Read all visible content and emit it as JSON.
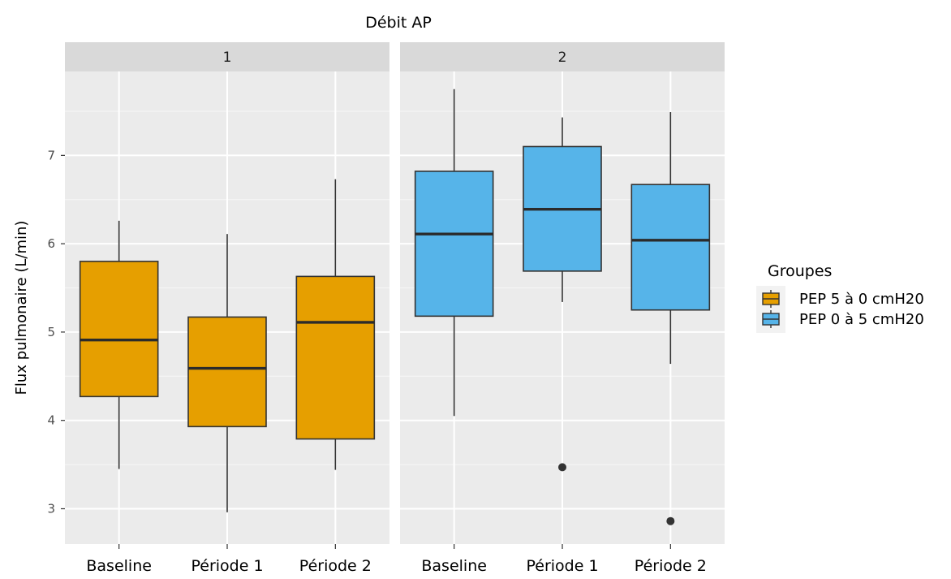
{
  "chart_data": {
    "type": "boxplot",
    "title": "Débit AP",
    "ylabel": "Flux pulmonaire (L/min)",
    "xlabel": "",
    "ylim": [
      2.6,
      7.95
    ],
    "yticks": [
      3,
      4,
      5,
      6,
      7
    ],
    "grid": true,
    "legend": {
      "title": "Groupes",
      "position": "right",
      "items": [
        {
          "label": "PEP 5 à 0 cmH20",
          "color": "#E69F00"
        },
        {
          "label": "PEP 0 à 5 cmH20",
          "color": "#56B4E9"
        }
      ]
    },
    "panels": [
      {
        "label": "1",
        "color": "#E69F00",
        "categories": [
          "Baseline",
          "Période 1",
          "Période 2"
        ],
        "boxes": [
          {
            "category": "Baseline",
            "whisker_low": 3.45,
            "q1": 4.27,
            "median": 4.91,
            "q3": 5.8,
            "whisker_high": 6.26,
            "outliers": []
          },
          {
            "category": "Période 1",
            "whisker_low": 2.96,
            "q1": 3.93,
            "median": 4.59,
            "q3": 5.17,
            "whisker_high": 6.11,
            "outliers": []
          },
          {
            "category": "Période 2",
            "whisker_low": 3.44,
            "q1": 3.79,
            "median": 5.11,
            "q3": 5.63,
            "whisker_high": 6.73,
            "outliers": []
          }
        ]
      },
      {
        "label": "2",
        "color": "#56B4E9",
        "categories": [
          "Baseline",
          "Période 1",
          "Période 2"
        ],
        "boxes": [
          {
            "category": "Baseline",
            "whisker_low": 4.05,
            "q1": 5.18,
            "median": 6.11,
            "q3": 6.82,
            "whisker_high": 7.75,
            "outliers": []
          },
          {
            "category": "Période 1",
            "whisker_low": 5.34,
            "q1": 5.69,
            "median": 6.39,
            "q3": 7.1,
            "whisker_high": 7.43,
            "outliers": [
              3.47
            ]
          },
          {
            "category": "Période 2",
            "whisker_low": 4.64,
            "q1": 5.25,
            "median": 6.04,
            "q3": 6.67,
            "whisker_high": 7.49,
            "outliers": [
              2.86
            ]
          }
        ]
      }
    ]
  }
}
